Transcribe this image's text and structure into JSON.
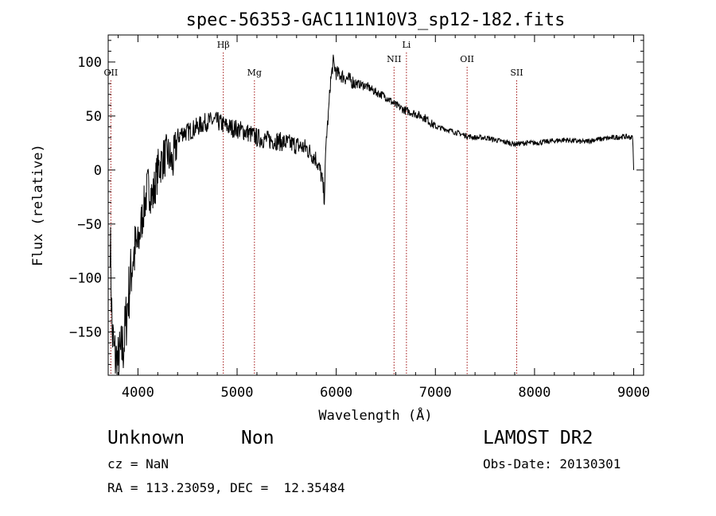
{
  "chart_data": {
    "type": "line",
    "title": "spec-56353-GAC111N10V3_sp12-182.fits",
    "xlabel": "Wavelength (Å)",
    "ylabel": "Flux (relative)",
    "xlim": [
      3700,
      9100
    ],
    "ylim": [
      -190,
      125
    ],
    "xticks": [
      4000,
      5000,
      6000,
      7000,
      8000,
      9000
    ],
    "xtick_labels": [
      "4000",
      "5000",
      "6000",
      "7000",
      "8000",
      "9000"
    ],
    "yticks": [
      -150,
      -100,
      -50,
      0,
      50,
      100
    ],
    "ytick_labels": [
      "−150",
      "−100",
      "−50",
      "0",
      "50",
      "100"
    ],
    "grid": false,
    "lines": [
      {
        "label": "OII",
        "x": 3727,
        "level": "low"
      },
      {
        "label": "Hβ",
        "x": 4861,
        "level": "high"
      },
      {
        "label": "Mg",
        "x": 5175,
        "level": "low"
      },
      {
        "label": "NII",
        "x": 6583,
        "level": "mid"
      },
      {
        "label": "Li",
        "x": 6708,
        "level": "high"
      },
      {
        "label": "OII",
        "x": 7320,
        "level": "mid"
      },
      {
        "label": "SII",
        "x": 7820,
        "level": "low"
      }
    ],
    "series": [
      {
        "color": "#000000",
        "x": [
          3720,
          3740,
          3760,
          3780,
          3800,
          3830,
          3860,
          3900,
          3950,
          4000,
          4050,
          4100,
          4150,
          4200,
          4250,
          4300,
          4350,
          4400,
          4450,
          4500,
          4600,
          4700,
          4800,
          4900,
          5000,
          5100,
          5200,
          5300,
          5400,
          5500,
          5600,
          5700,
          5800,
          5850,
          5880,
          5900,
          5920,
          5940,
          5970,
          6000,
          6100,
          6200,
          6300,
          6400,
          6500,
          6600,
          6700,
          6800,
          6900,
          7000,
          7100,
          7200,
          7300,
          7400,
          7500,
          7600,
          7700,
          7800,
          7900,
          8000,
          8100,
          8200,
          8300,
          8400,
          8500,
          8600,
          8700,
          8800,
          8900,
          8990,
          9000
        ],
        "y": [
          -60,
          -150,
          -170,
          -175,
          -180,
          -170,
          -160,
          -120,
          -80,
          -70,
          -40,
          -15,
          -25,
          0,
          10,
          15,
          5,
          30,
          35,
          35,
          40,
          45,
          45,
          40,
          38,
          35,
          30,
          28,
          27,
          25,
          23,
          20,
          10,
          -5,
          -25,
          30,
          50,
          80,
          100,
          90,
          85,
          80,
          78,
          72,
          68,
          60,
          55,
          52,
          48,
          40,
          38,
          35,
          32,
          30,
          30,
          28,
          26,
          24,
          25,
          25,
          26,
          27,
          28,
          27,
          26,
          28,
          29,
          30,
          31,
          30,
          0
        ]
      }
    ]
  },
  "info": {
    "class_label": "Unknown",
    "subclass_label": "Non",
    "cz_text": "cz = NaN",
    "coords_text": "RA = 113.23059, DEC =  12.35484",
    "survey": "LAMOST DR2",
    "obs_date": "Obs-Date: 20130301"
  }
}
